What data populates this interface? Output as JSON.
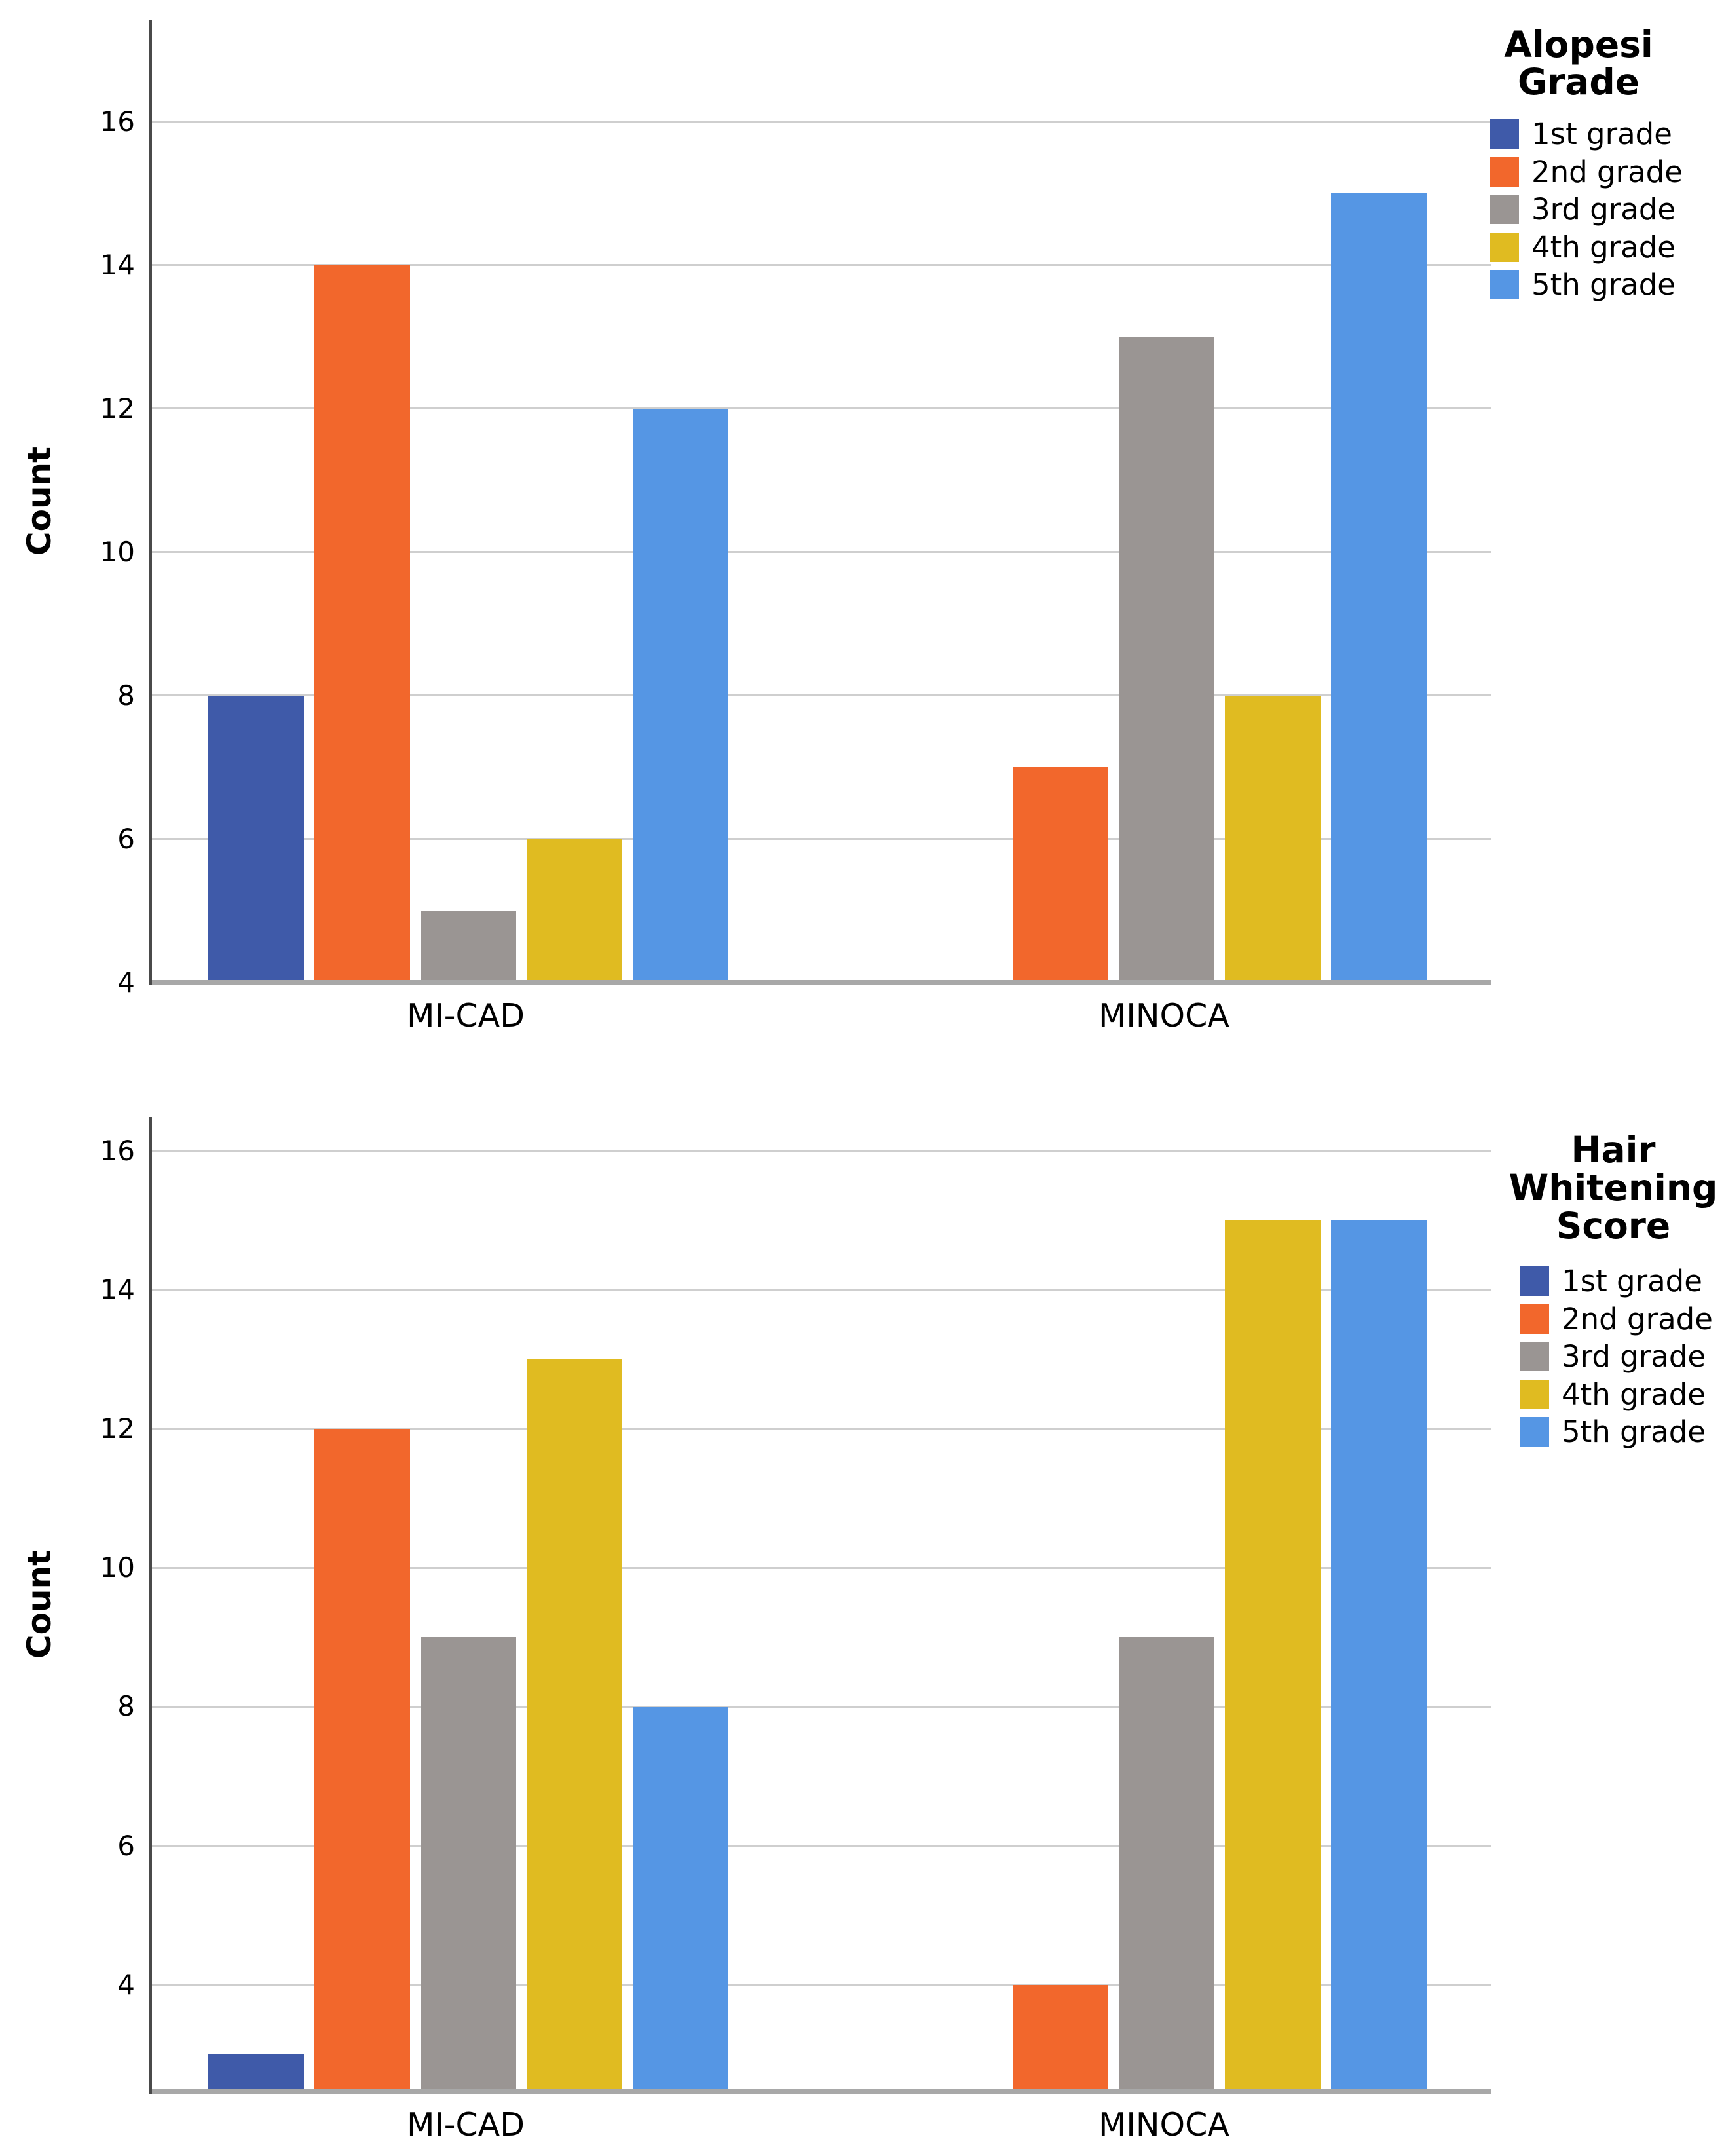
{
  "figure": {
    "background": "#FFFFFF"
  },
  "styles": {
    "grid_color": "#CFCFCF",
    "baseline_color": "#A8A8A8",
    "axis_color": "#4A4A4A",
    "text_color": "#000000"
  },
  "chart_data": [
    {
      "type": "bar",
      "title": "",
      "ylabel": "Count",
      "xlabel": "",
      "categories": [
        "MI-CAD",
        "MINOCA"
      ],
      "legend_title_lines": [
        "Alopesi",
        "Grade"
      ],
      "series": [
        {
          "name": "1st grade",
          "color": "#3F5AA9",
          "values": [
            8,
            null
          ]
        },
        {
          "name": "2nd grade",
          "color": "#F2672C",
          "values": [
            14,
            7
          ]
        },
        {
          "name": "3rd grade",
          "color": "#9A9593",
          "values": [
            5,
            13
          ]
        },
        {
          "name": "4th grade",
          "color": "#E0BB21",
          "values": [
            6,
            8
          ]
        },
        {
          "name": "5th grade",
          "color": "#5596E4",
          "values": [
            12,
            15
          ]
        }
      ],
      "yticks": [
        4,
        6,
        8,
        10,
        12,
        14,
        16
      ],
      "ylim": [
        4,
        17.42
      ],
      "grid": true,
      "legend_position": "right"
    },
    {
      "type": "bar",
      "title": "",
      "ylabel": "Count",
      "xlabel": "",
      "categories": [
        "MI-CAD",
        "MINOCA"
      ],
      "legend_title_lines": [
        "Hair",
        "Whitening",
        "Score"
      ],
      "series": [
        {
          "name": "1st grade",
          "color": "#3F5AA9",
          "values": [
            3,
            null
          ]
        },
        {
          "name": "2nd grade",
          "color": "#F2672C",
          "values": [
            12,
            4
          ]
        },
        {
          "name": "3rd grade",
          "color": "#9A9593",
          "values": [
            9,
            9
          ]
        },
        {
          "name": "4th grade",
          "color": "#E0BB21",
          "values": [
            13,
            15
          ]
        },
        {
          "name": "5th grade",
          "color": "#5596E4",
          "values": [
            8,
            15
          ]
        }
      ],
      "yticks": [
        4,
        6,
        8,
        10,
        12,
        14,
        16
      ],
      "ylim": [
        2.46,
        16.49
      ],
      "grid": true,
      "legend_position": "right"
    }
  ]
}
